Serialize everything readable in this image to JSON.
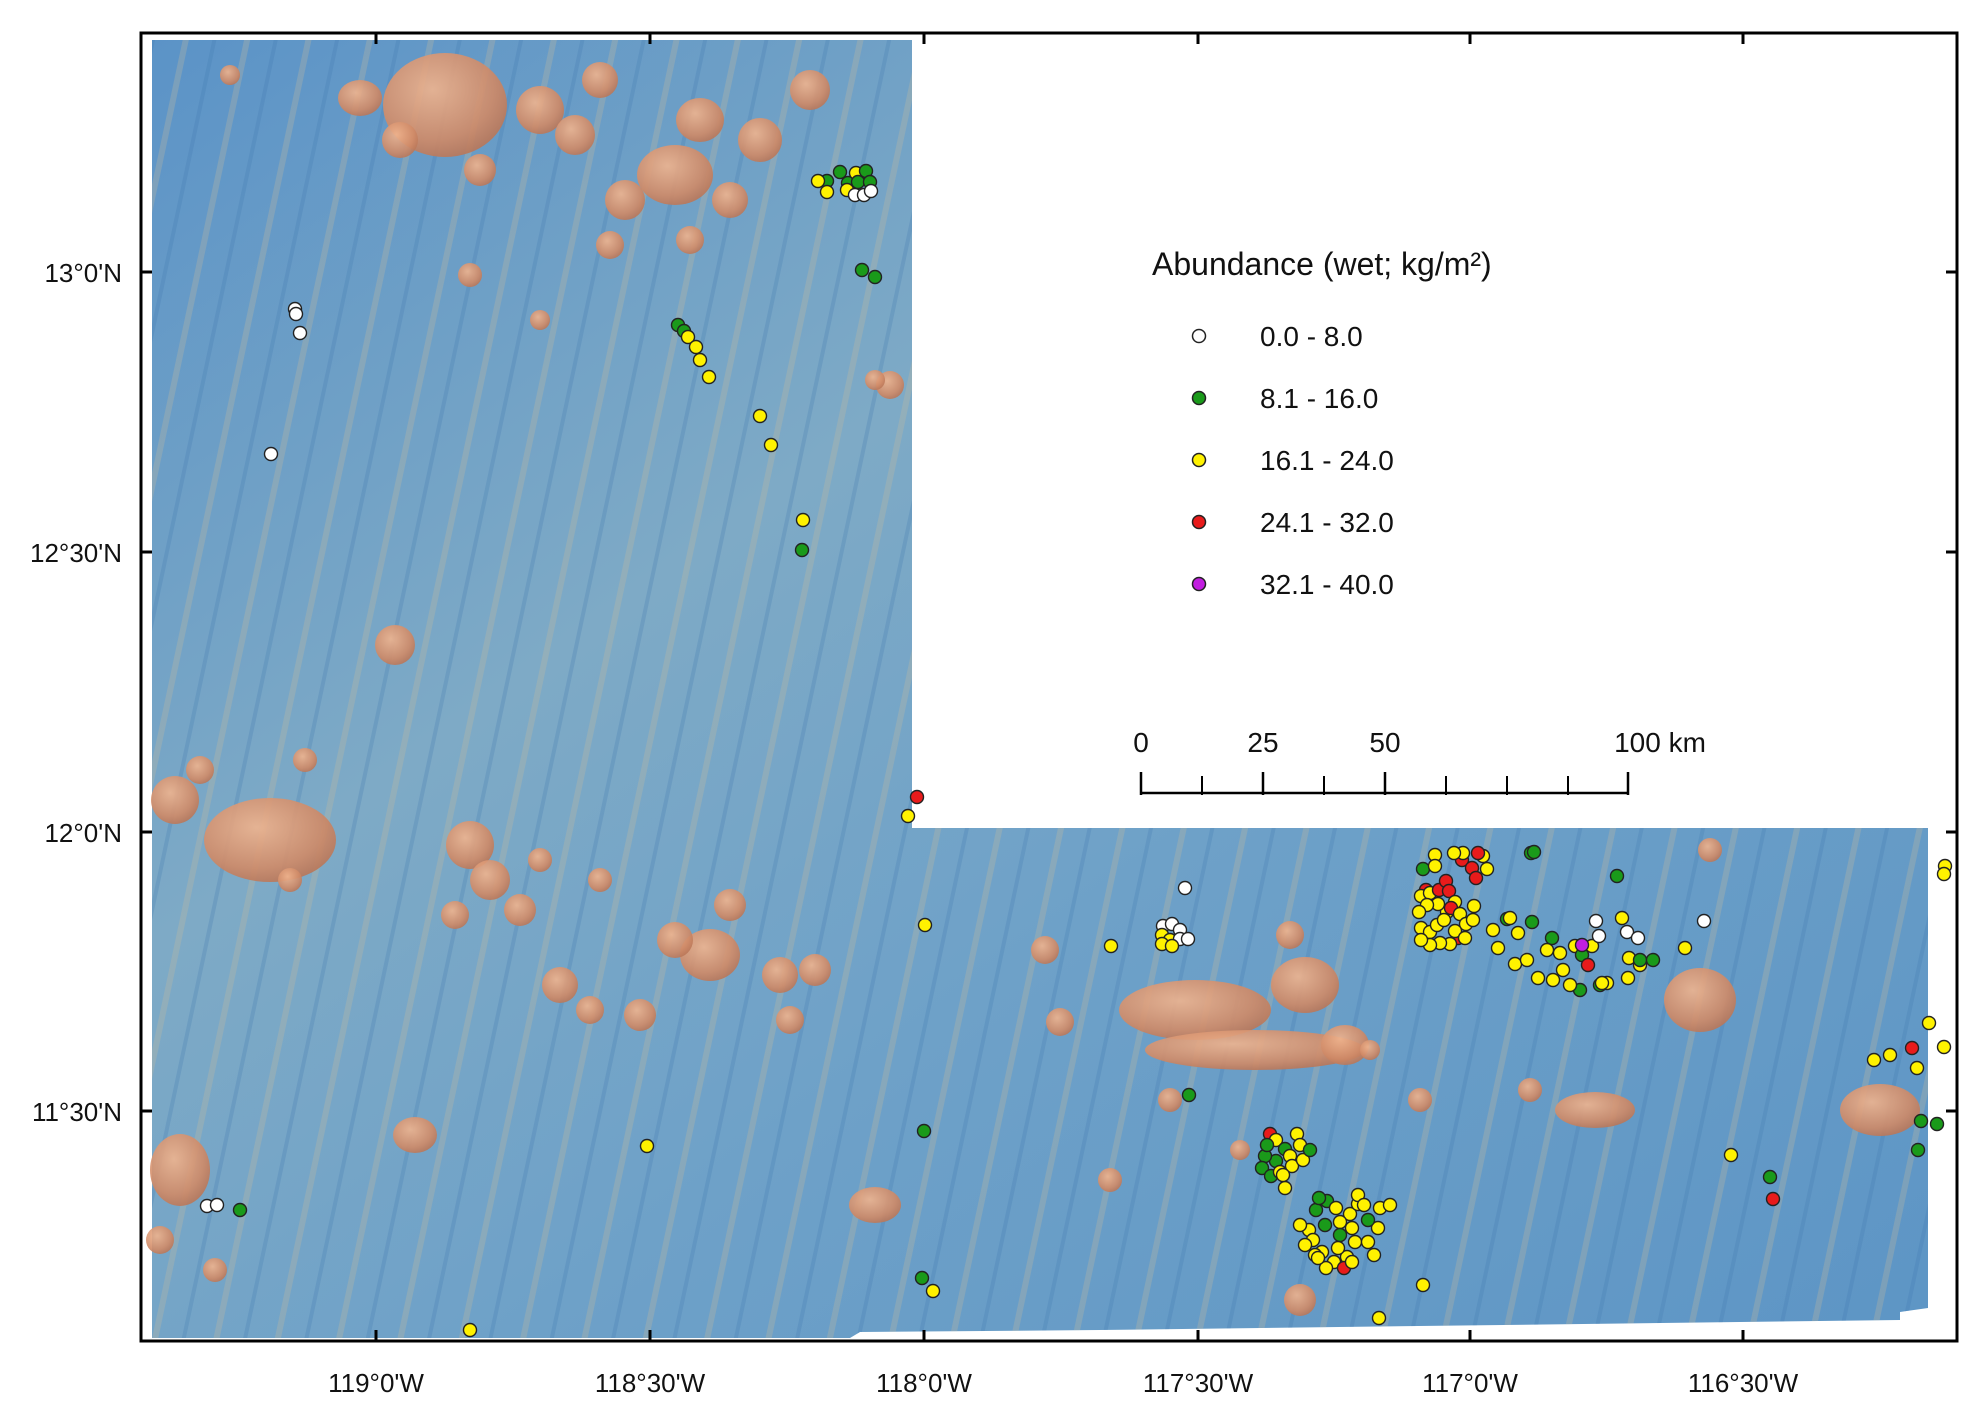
{
  "map": {
    "lat_labels": [
      "13°0'N",
      "12°30'N",
      "12°0'N",
      "11°30'N"
    ],
    "lon_labels": [
      "119°0'W",
      "118°30'W",
      "118°0'W",
      "117°30'W",
      "117°0'W",
      "116°30'W"
    ]
  },
  "legend": {
    "title": "Abundance  (wet; kg/m²)",
    "classes": [
      {
        "label": "0.0 - 8.0",
        "color": "#ffffff"
      },
      {
        "label": "8.1 - 16.0",
        "color": "#1a9a1a"
      },
      {
        "label": "16.1 - 24.0",
        "color": "#fff200"
      },
      {
        "label": "24.1 - 32.0",
        "color": "#e81b1b"
      },
      {
        "label": "32.1 - 40.0",
        "color": "#c21ee0"
      }
    ]
  },
  "scale_bar": {
    "labels": [
      "0",
      "25",
      "50",
      "100 km"
    ]
  },
  "colors": {
    "seafloor_deep": "#4f8fc6",
    "seafloor_mid": "#8fb6c8",
    "seamount": "#d9956e"
  }
}
